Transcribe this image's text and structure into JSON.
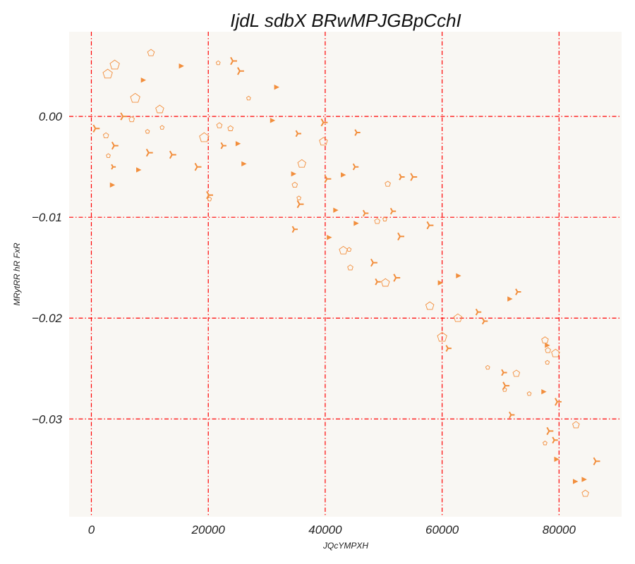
{
  "chart_data": {
    "type": "scatter",
    "title": "IjdL sdbX BRwMPJGBpCchI",
    "xlabel": "JQcYMPXH",
    "ylabel": "MRytRR hR FxR",
    "xlim": [
      -3800,
      90700
    ],
    "ylim": [
      -0.0397,
      0.0084
    ],
    "x_ticks": [
      0,
      20000,
      40000,
      60000,
      80000
    ],
    "x_tick_labels": [
      "0",
      "20000",
      "40000",
      "60000",
      "80000"
    ],
    "y_ticks": [
      0.0,
      -0.01,
      -0.02,
      -0.03
    ],
    "y_tick_labels": [
      "0.00",
      "−0.01",
      "−0.02",
      "−0.03"
    ],
    "grid": true,
    "colors": {
      "marker": "#f28e3c",
      "grid": "#ff0000",
      "plot_bg": "#f9f7f3"
    },
    "points": [
      [
        4000,
        0.0051,
        "pentagon",
        7
      ],
      [
        2800,
        0.0042,
        "pentagon",
        7
      ],
      [
        10200,
        0.0063,
        "pentagon",
        5
      ],
      [
        15300,
        0.005,
        "triangle",
        4
      ],
      [
        21700,
        0.0053,
        "pentagon",
        3
      ],
      [
        24200,
        0.0055,
        "tri",
        6
      ],
      [
        25400,
        0.0045,
        "tri",
        6
      ],
      [
        8800,
        0.0036,
        "triangle",
        4
      ],
      [
        31600,
        0.0029,
        "triangle",
        4
      ],
      [
        7500,
        0.0018,
        "pentagon",
        7
      ],
      [
        26900,
        0.0018,
        "pentagon",
        3
      ],
      [
        11700,
        0.0007,
        "pentagon",
        6
      ],
      [
        5400,
        0.0,
        "tri",
        6
      ],
      [
        6900,
        -0.0003,
        "pentagon",
        4
      ],
      [
        30900,
        -0.0004,
        "triangle",
        4
      ],
      [
        39700,
        -0.0006,
        "tri",
        6
      ],
      [
        700,
        -0.0012,
        "tri",
        6
      ],
      [
        12100,
        -0.0011,
        "pentagon",
        3
      ],
      [
        21900,
        -0.0009,
        "pentagon",
        4
      ],
      [
        23800,
        -0.0012,
        "pentagon",
        4
      ],
      [
        9600,
        -0.0015,
        "pentagon",
        3
      ],
      [
        2500,
        -0.0019,
        "pentagon",
        4
      ],
      [
        35300,
        -0.0017,
        "tri",
        5
      ],
      [
        45400,
        -0.0016,
        "tri",
        5
      ],
      [
        19300,
        -0.0021,
        "pentagon",
        7
      ],
      [
        3900,
        -0.0029,
        "tri",
        6
      ],
      [
        22500,
        -0.0029,
        "tri",
        5
      ],
      [
        25000,
        -0.0027,
        "triangle",
        4
      ],
      [
        39700,
        -0.0025,
        "pentagon",
        6
      ],
      [
        9800,
        -0.0036,
        "tri",
        6
      ],
      [
        13800,
        -0.0038,
        "tri",
        6
      ],
      [
        2900,
        -0.0039,
        "pentagon",
        3
      ],
      [
        36000,
        -0.0047,
        "pentagon",
        6
      ],
      [
        26000,
        -0.0047,
        "triangle",
        4
      ],
      [
        3700,
        -0.005,
        "tri",
        4
      ],
      [
        18100,
        -0.005,
        "tri",
        6
      ],
      [
        8000,
        -0.0053,
        "triangle",
        4
      ],
      [
        34500,
        -0.0057,
        "triangle",
        4
      ],
      [
        45100,
        -0.005,
        "tri",
        5
      ],
      [
        43000,
        -0.0058,
        "triangle",
        4
      ],
      [
        40300,
        -0.0062,
        "tri",
        6
      ],
      [
        53000,
        -0.006,
        "tri",
        5
      ],
      [
        55000,
        -0.006,
        "tri",
        6
      ],
      [
        34800,
        -0.0068,
        "pentagon",
        4
      ],
      [
        50700,
        -0.0067,
        "pentagon",
        4
      ],
      [
        3500,
        -0.0068,
        "triangle",
        4
      ],
      [
        20100,
        -0.0078,
        "tri",
        6
      ],
      [
        20200,
        -0.0082,
        "pentagon",
        3
      ],
      [
        35600,
        -0.0087,
        "tri",
        6
      ],
      [
        35500,
        -0.0081,
        "pentagon",
        3
      ],
      [
        41700,
        -0.0093,
        "triangle",
        4
      ],
      [
        46800,
        -0.0096,
        "tri",
        5
      ],
      [
        51500,
        -0.0094,
        "tri",
        5
      ],
      [
        48900,
        -0.0104,
        "pentagon",
        4
      ],
      [
        50200,
        -0.0102,
        "pentagon",
        3
      ],
      [
        45200,
        -0.0106,
        "triangle",
        4
      ],
      [
        57800,
        -0.0108,
        "tri",
        6
      ],
      [
        34700,
        -0.0112,
        "tri",
        5
      ],
      [
        40600,
        -0.012,
        "triangle",
        4
      ],
      [
        52800,
        -0.0119,
        "tri",
        6
      ],
      [
        43100,
        -0.0133,
        "pentagon",
        6
      ],
      [
        44100,
        -0.0132,
        "pentagon",
        3
      ],
      [
        48200,
        -0.0145,
        "tri",
        6
      ],
      [
        44300,
        -0.015,
        "pentagon",
        4
      ],
      [
        62700,
        -0.0158,
        "triangle",
        4
      ],
      [
        52100,
        -0.016,
        "tri",
        6
      ],
      [
        48900,
        -0.0164,
        "tri",
        5
      ],
      [
        50300,
        -0.0165,
        "pentagon",
        6
      ],
      [
        59600,
        -0.0165,
        "triangle",
        4
      ],
      [
        72900,
        -0.0174,
        "tri",
        5
      ],
      [
        71500,
        -0.0181,
        "triangle",
        4
      ],
      [
        57900,
        -0.0188,
        "pentagon",
        6
      ],
      [
        66100,
        -0.0194,
        "tri",
        5
      ],
      [
        62700,
        -0.02,
        "pentagon",
        6
      ],
      [
        67200,
        -0.0203,
        "tri",
        5
      ],
      [
        60000,
        -0.0219,
        "pentagon",
        7
      ],
      [
        77600,
        -0.0222,
        "pentagon",
        5
      ],
      [
        61000,
        -0.023,
        "tri",
        5
      ],
      [
        77900,
        -0.0227,
        "triangle",
        4
      ],
      [
        79400,
        -0.0235,
        "pentagon",
        6
      ],
      [
        78100,
        -0.0232,
        "pentagon",
        4
      ],
      [
        78000,
        -0.0244,
        "pentagon",
        3
      ],
      [
        67800,
        -0.0249,
        "pentagon",
        3
      ],
      [
        70500,
        -0.0254,
        "tri",
        5
      ],
      [
        72700,
        -0.0255,
        "pentagon",
        5
      ],
      [
        70800,
        -0.0267,
        "tri",
        6
      ],
      [
        70700,
        -0.0271,
        "pentagon",
        3
      ],
      [
        74900,
        -0.0275,
        "pentagon",
        3
      ],
      [
        77300,
        -0.0273,
        "triangle",
        4
      ],
      [
        79700,
        -0.0283,
        "tri",
        6
      ],
      [
        71800,
        -0.0296,
        "tri",
        5
      ],
      [
        82900,
        -0.0306,
        "pentagon",
        5
      ],
      [
        78300,
        -0.0312,
        "tri",
        6
      ],
      [
        79200,
        -0.0321,
        "tri",
        5
      ],
      [
        77600,
        -0.0324,
        "pentagon",
        3
      ],
      [
        79500,
        -0.034,
        "triangle",
        4
      ],
      [
        86300,
        -0.0342,
        "tri",
        6
      ],
      [
        84200,
        -0.036,
        "triangle",
        4
      ],
      [
        82700,
        -0.0362,
        "triangle",
        4
      ],
      [
        84500,
        -0.0374,
        "pentagon",
        5
      ]
    ]
  }
}
